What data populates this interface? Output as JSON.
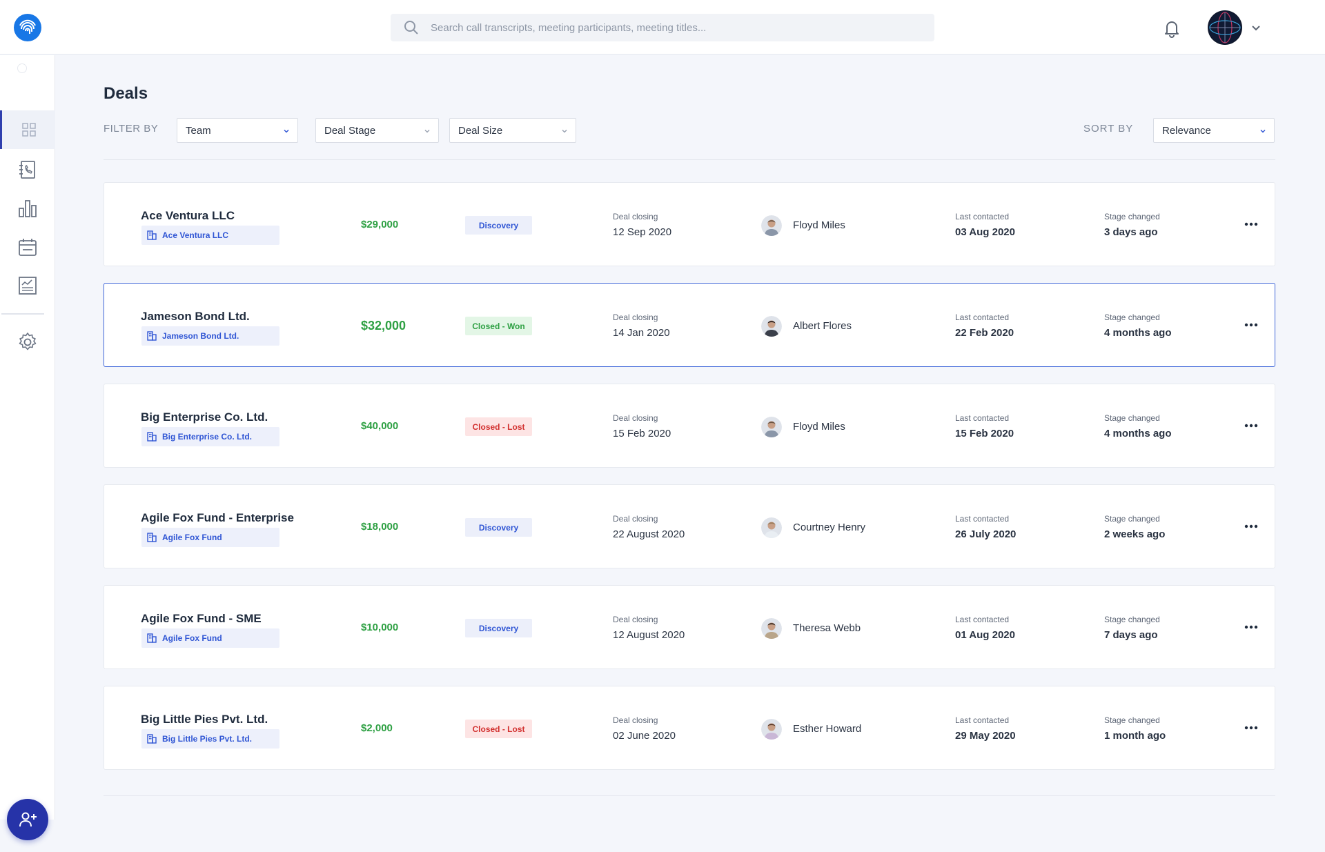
{
  "search": {
    "placeholder": "Search call transcripts, meeting participants, meeting titles..."
  },
  "page": {
    "title": "Deals"
  },
  "filters": {
    "label": "FILTER BY",
    "team": "Team",
    "deal_stage": "Deal Stage",
    "deal_size": "Deal Size"
  },
  "sort": {
    "label": "SORT  BY",
    "value": "Relevance"
  },
  "colors": {
    "accent": "#2f55d4",
    "amount": "#2ea043",
    "won": "#2ea043",
    "lost": "#d2302f",
    "sidebar_active": "#2f3fae",
    "fab": "#2633a8"
  },
  "deals": [
    {
      "name": "Ace Ventura LLC",
      "company": "Ace Ventura LLC",
      "amount": "$29,000",
      "stage": "Discovery",
      "closing_label": "Deal  closing",
      "closing_date": "12 Sep 2020",
      "owner": "Floyd Miles",
      "last_contacted_label": "Last contacted",
      "last_contacted": "03 Aug 2020",
      "stage_changed_label": "Stage changed",
      "stage_changed": "3 days ago"
    },
    {
      "name": "Jameson Bond Ltd.",
      "company": "Jameson Bond Ltd.",
      "amount": "$32,000",
      "stage": "Closed - Won",
      "closing_label": "Deal  closing",
      "closing_date": "14 Jan 2020",
      "owner": "Albert Flores",
      "last_contacted_label": "Last contacted",
      "last_contacted": "22 Feb 2020",
      "stage_changed_label": "Stage changed",
      "stage_changed": "4 months ago"
    },
    {
      "name": "Big Enterprise Co. Ltd.",
      "company": "Big Enterprise Co. Ltd.",
      "amount": "$40,000",
      "stage": "Closed - Lost",
      "closing_label": "Deal  closing",
      "closing_date": "15 Feb 2020",
      "owner": "Floyd Miles",
      "last_contacted_label": "Last contacted",
      "last_contacted": "15 Feb 2020",
      "stage_changed_label": "Stage changed",
      "stage_changed": "4 months ago"
    },
    {
      "name": "Agile Fox Fund - Enterprise",
      "company": "Agile Fox Fund",
      "amount": "$18,000",
      "stage": "Discovery",
      "closing_label": "Deal  closing",
      "closing_date": "22 August 2020",
      "owner": "Courtney Henry",
      "last_contacted_label": "Last contacted",
      "last_contacted": "26 July 2020",
      "stage_changed_label": "Stage changed",
      "stage_changed": "2 weeks ago"
    },
    {
      "name": "Agile Fox Fund - SME",
      "company": "Agile Fox Fund",
      "amount": "$10,000",
      "stage": "Discovery",
      "closing_label": "Deal  closing",
      "closing_date": "12 August 2020",
      "owner": "Theresa Webb",
      "last_contacted_label": "Last contacted",
      "last_contacted": "01 Aug 2020",
      "stage_changed_label": "Stage changed",
      "stage_changed": "7 days ago"
    },
    {
      "name": "Big Little Pies Pvt. Ltd.",
      "company": "Big Little Pies Pvt. Ltd.",
      "amount": "$2,000",
      "stage": "Closed - Lost",
      "closing_label": "Deal  closing",
      "closing_date": "02 June 2020",
      "owner": "Esther Howard",
      "last_contacted_label": "Last contacted",
      "last_contacted": "29 May 2020",
      "stage_changed_label": "Stage changed",
      "stage_changed": "1 month ago"
    }
  ]
}
